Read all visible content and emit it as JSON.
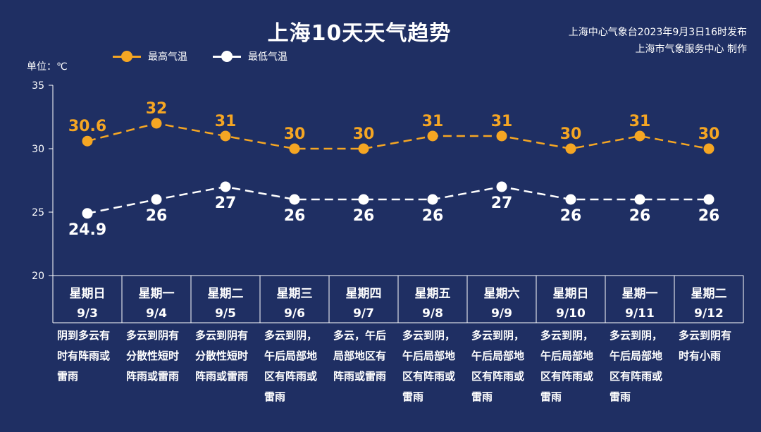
{
  "title": "上海10天天气趋势",
  "source": {
    "line1": "上海中心气象台2023年9月3日16时发布",
    "line2": "上海市气象服务中心 制作"
  },
  "unit_label": "单位：℃",
  "colors": {
    "high": "#f5a623",
    "low": "#ffffff",
    "background": "#1f2f63",
    "axis": "#ffffff"
  },
  "chart_data": {
    "type": "line",
    "ylim": [
      20,
      35
    ],
    "yticks": [
      20,
      25,
      30,
      35
    ],
    "ylabel": "单位：℃",
    "legend_position": "top-left",
    "grid": false,
    "categories": [
      {
        "day": "星期日",
        "date": "9/3"
      },
      {
        "day": "星期一",
        "date": "9/4"
      },
      {
        "day": "星期二",
        "date": "9/5"
      },
      {
        "day": "星期三",
        "date": "9/6"
      },
      {
        "day": "星期四",
        "date": "9/7"
      },
      {
        "day": "星期五",
        "date": "9/8"
      },
      {
        "day": "星期六",
        "date": "9/9"
      },
      {
        "day": "星期日",
        "date": "9/10"
      },
      {
        "day": "星期一",
        "date": "9/11"
      },
      {
        "day": "星期二",
        "date": "9/12"
      }
    ],
    "series": [
      {
        "name": "最高气温",
        "values": [
          30.6,
          32,
          31,
          30,
          30,
          31,
          31,
          30,
          31,
          30
        ],
        "labels": [
          "30.6",
          "32",
          "31",
          "30",
          "30",
          "31",
          "31",
          "30",
          "31",
          "30"
        ]
      },
      {
        "name": "最低气温",
        "values": [
          24.9,
          26,
          27,
          26,
          26,
          26,
          27,
          26,
          26,
          26
        ],
        "labels": [
          "24.9",
          "26",
          "27",
          "26",
          "26",
          "26",
          "27",
          "26",
          "26",
          "26"
        ]
      }
    ]
  },
  "weather_text": [
    [
      "阴到多云有",
      "时有阵雨或",
      "雷雨"
    ],
    [
      "多云到阴有",
      "分散性短时",
      "阵雨或雷雨"
    ],
    [
      "多云到阴有",
      "分散性短时",
      "阵雨或雷雨"
    ],
    [
      "多云到阴，",
      "午后局部地",
      "区有阵雨或",
      "雷雨"
    ],
    [
      "多云，午后",
      "局部地区有",
      "阵雨或雷雨"
    ],
    [
      "多云到阴，",
      "午后局部地",
      "区有阵雨或",
      "雷雨"
    ],
    [
      "多云到阴，",
      "午后局部地",
      "区有阵雨或",
      "雷雨"
    ],
    [
      "多云到阴，",
      "午后局部地",
      "区有阵雨或",
      "雷雨"
    ],
    [
      "多云到阴，",
      "午后局部地",
      "区有阵雨或",
      "雷雨"
    ],
    [
      "多云到阴有",
      "时有小雨"
    ]
  ]
}
